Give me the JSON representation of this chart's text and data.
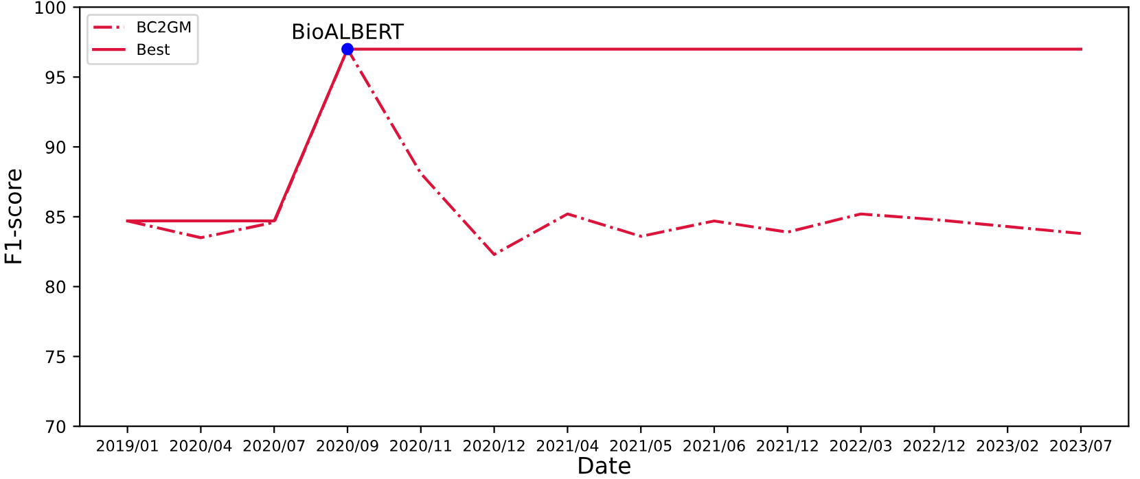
{
  "chart_data": {
    "type": "line",
    "xlabel": "Date",
    "ylabel": "F1-score",
    "categories": [
      "2019/01",
      "2020/04",
      "2020/07",
      "2020/09",
      "2020/11",
      "2020/12",
      "2021/04",
      "2021/05",
      "2021/06",
      "2021/12",
      "2022/03",
      "2022/12",
      "2023/02",
      "2023/07"
    ],
    "series": [
      {
        "name": "BC2GM",
        "color": "#dc143c",
        "line_style": "dashdot",
        "values": [
          84.7,
          83.5,
          84.6,
          97.0,
          88.1,
          82.3,
          85.2,
          83.6,
          84.7,
          83.9,
          85.2,
          84.8,
          84.3,
          83.8
        ]
      },
      {
        "name": "Best",
        "color": "#dc143c",
        "line_style": "solid",
        "values": [
          84.7,
          84.7,
          84.7,
          97.0,
          97.0,
          97.0,
          97.0,
          97.0,
          97.0,
          97.0,
          97.0,
          97.0,
          97.0,
          97.0
        ]
      },
      {
        "type": "scatter",
        "color": "#0000ff",
        "marker": "circle",
        "x": [
          "2020/09"
        ],
        "values": [
          97.0
        ]
      }
    ],
    "annotations": [
      {
        "text": "BioALBERT",
        "x": "2020/09",
        "y": 97.0
      }
    ],
    "ylim": [
      70,
      100
    ],
    "yticks": [
      70,
      75,
      80,
      85,
      90,
      95,
      100
    ],
    "grid": false,
    "legend": "top left",
    "marker": "none"
  }
}
